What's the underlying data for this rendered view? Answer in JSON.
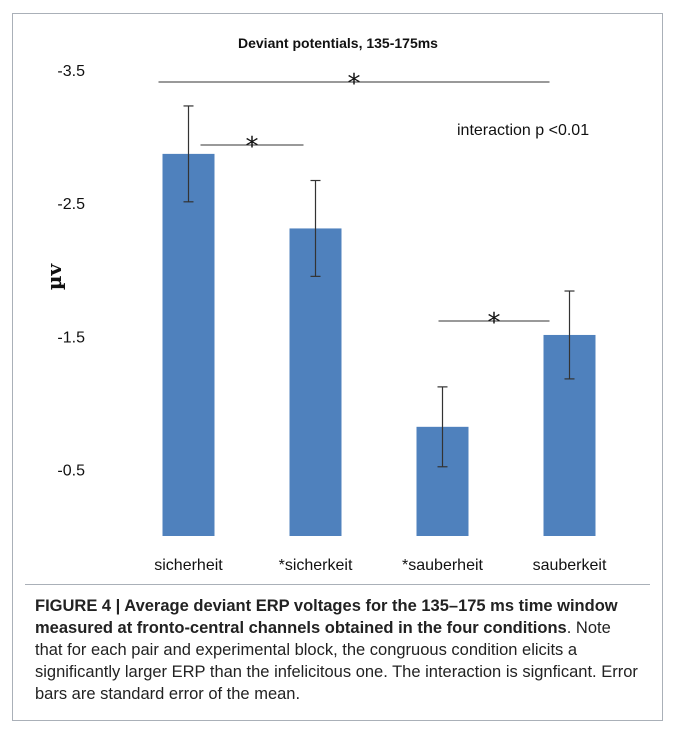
{
  "chart_data": {
    "type": "bar",
    "title": "Deviant potentials, 135-175ms",
    "ylabel": "µv",
    "xlabel": "",
    "categories": [
      "sicherheit",
      "*sicherkeit",
      "*sauberheit",
      "sauberkeit"
    ],
    "values": [
      -2.87,
      -2.31,
      -0.82,
      -1.51
    ],
    "error": [
      0.36,
      0.36,
      0.3,
      0.33
    ],
    "ylim": [
      0,
      -3.5
    ],
    "y_ticks": [
      "-3.5",
      "-2.5",
      "-1.5",
      "-0.5"
    ],
    "y_tick_values": [
      -3.5,
      -2.5,
      -1.5,
      -0.5
    ],
    "y_axis_inverted": true,
    "grid": false,
    "bar_color": "#4f81bd",
    "annotation": "interaction p <0.01",
    "significance": [
      {
        "from": 0,
        "to": 3,
        "label": "*",
        "level": -3.5
      },
      {
        "from": 0,
        "to": 1,
        "label": "*",
        "level": -2.87
      },
      {
        "from": 2,
        "to": 3,
        "label": "*",
        "level": -1.6
      }
    ]
  },
  "caption": {
    "bold": "FIGURE 4 | Average deviant ERP voltages for the 135–175 ms time window measured at fronto-central channels obtained in the four conditions",
    "text": ". Note that for each pair and experimental block, the congruous condition elicits a significantly larger ERP than the infelicitous one. The interaction is signficant. Error bars are standard error of the mean."
  }
}
